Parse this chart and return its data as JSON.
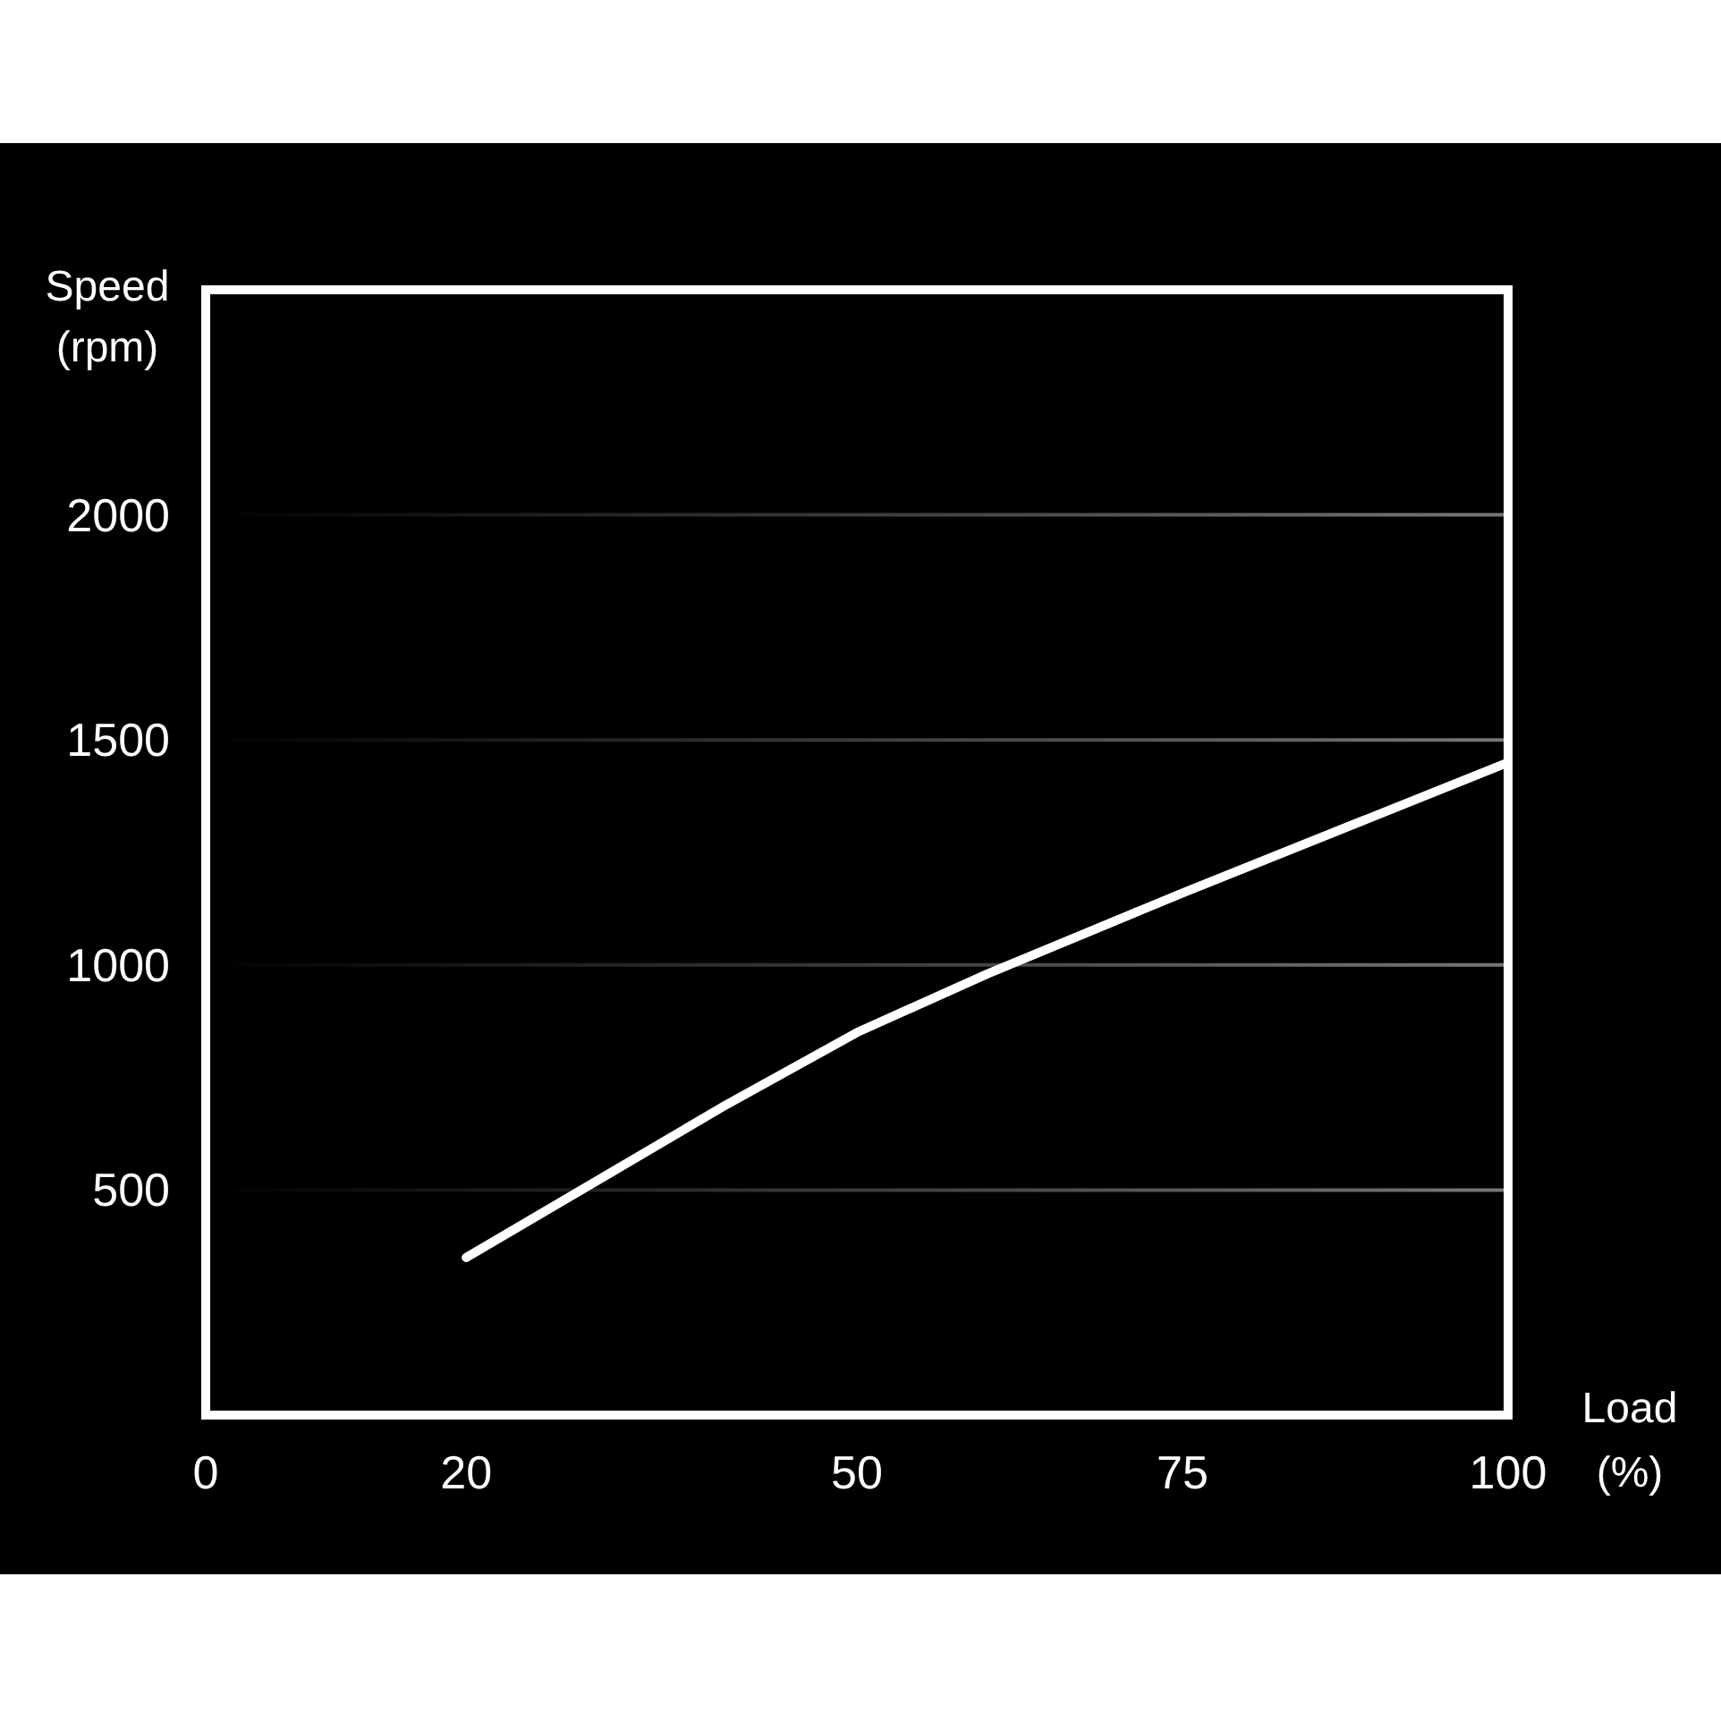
{
  "chart_data": {
    "type": "line",
    "xlabel": "Load (%)",
    "ylabel": "Speed (rpm)",
    "xlim": [
      0,
      100
    ],
    "xticks": [
      0,
      20,
      50,
      75,
      100
    ],
    "ylim": [
      0,
      2500
    ],
    "yticks": [
      500,
      1000,
      1500,
      2000
    ],
    "grid": "y",
    "series": [
      {
        "color": "#ffffff",
        "x": [
          20,
          30,
          40,
          50,
          60,
          75,
          100
        ],
        "values": [
          350,
          520,
          690,
          850,
          980,
          1160,
          1450
        ]
      }
    ]
  }
}
